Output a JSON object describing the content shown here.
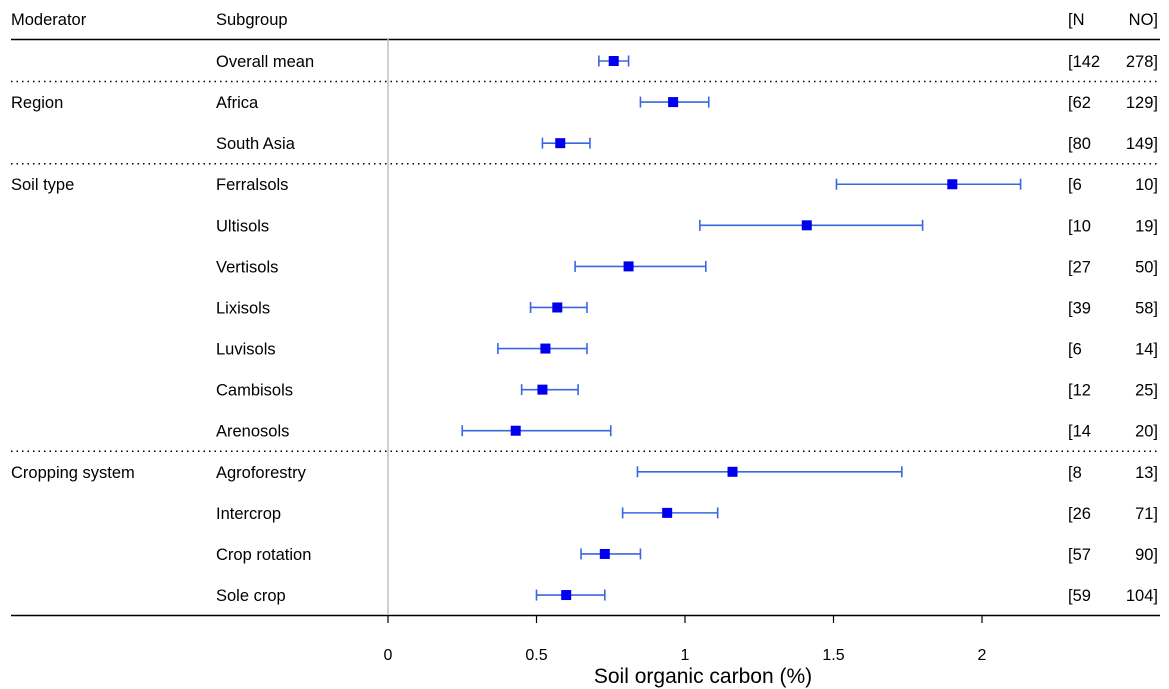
{
  "chart_data": {
    "type": "forest",
    "columns": {
      "moderator": "Moderator",
      "subgroup": "Subgroup",
      "n_open": "[N",
      "no_close": "NO]"
    },
    "rows": [
      {
        "moderator": "",
        "subgroup": "Overall mean",
        "mean": 0.76,
        "lower": 0.71,
        "upper": 0.81,
        "n": "142",
        "no": "278"
      },
      {
        "moderator": "Region",
        "subgroup": "Africa",
        "mean": 0.96,
        "lower": 0.85,
        "upper": 1.08,
        "n": "62",
        "no": "129"
      },
      {
        "moderator": "",
        "subgroup": "South Asia",
        "mean": 0.58,
        "lower": 0.52,
        "upper": 0.68,
        "n": "80",
        "no": "149"
      },
      {
        "moderator": "Soil type",
        "subgroup": "Ferralsols",
        "mean": 1.9,
        "lower": 1.51,
        "upper": 2.13,
        "n": "6",
        "no": "10"
      },
      {
        "moderator": "",
        "subgroup": "Ultisols",
        "mean": 1.41,
        "lower": 1.05,
        "upper": 1.8,
        "n": "10",
        "no": "19"
      },
      {
        "moderator": "",
        "subgroup": "Vertisols",
        "mean": 0.81,
        "lower": 0.63,
        "upper": 1.07,
        "n": "27",
        "no": "50"
      },
      {
        "moderator": "",
        "subgroup": "Lixisols",
        "mean": 0.57,
        "lower": 0.48,
        "upper": 0.67,
        "n": "39",
        "no": "58"
      },
      {
        "moderator": "",
        "subgroup": "Luvisols",
        "mean": 0.53,
        "lower": 0.37,
        "upper": 0.67,
        "n": "6",
        "no": "14"
      },
      {
        "moderator": "",
        "subgroup": "Cambisols",
        "mean": 0.52,
        "lower": 0.45,
        "upper": 0.64,
        "n": "12",
        "no": "25"
      },
      {
        "moderator": "",
        "subgroup": "Arenosols",
        "mean": 0.43,
        "lower": 0.25,
        "upper": 0.75,
        "n": "14",
        "no": "20"
      },
      {
        "moderator": "Cropping system",
        "subgroup": "Agroforestry",
        "mean": 1.16,
        "lower": 0.84,
        "upper": 1.73,
        "n": "8",
        "no": "13"
      },
      {
        "moderator": "",
        "subgroup": "Intercrop",
        "mean": 0.94,
        "lower": 0.79,
        "upper": 1.11,
        "n": "26",
        "no": "71"
      },
      {
        "moderator": "",
        "subgroup": "Crop rotation",
        "mean": 0.73,
        "lower": 0.65,
        "upper": 0.85,
        "n": "57",
        "no": "90"
      },
      {
        "moderator": "",
        "subgroup": "Sole crop",
        "mean": 0.6,
        "lower": 0.5,
        "upper": 0.73,
        "n": "59",
        "no": "104"
      }
    ],
    "group_separators_after_row": [
      0,
      2,
      9
    ],
    "xaxis": {
      "label": "Soil organic carbon (%)",
      "ticks": [
        0,
        0.5,
        1,
        1.5,
        2
      ],
      "tick_labels": [
        "0",
        "0.5",
        "1",
        "1.5",
        "2"
      ]
    },
    "reference_line": 0,
    "colors": {
      "point": "#0000ee",
      "errorbar": "#3a66e0",
      "reference_line": "#c0c0c0",
      "separator": "#000000"
    }
  }
}
